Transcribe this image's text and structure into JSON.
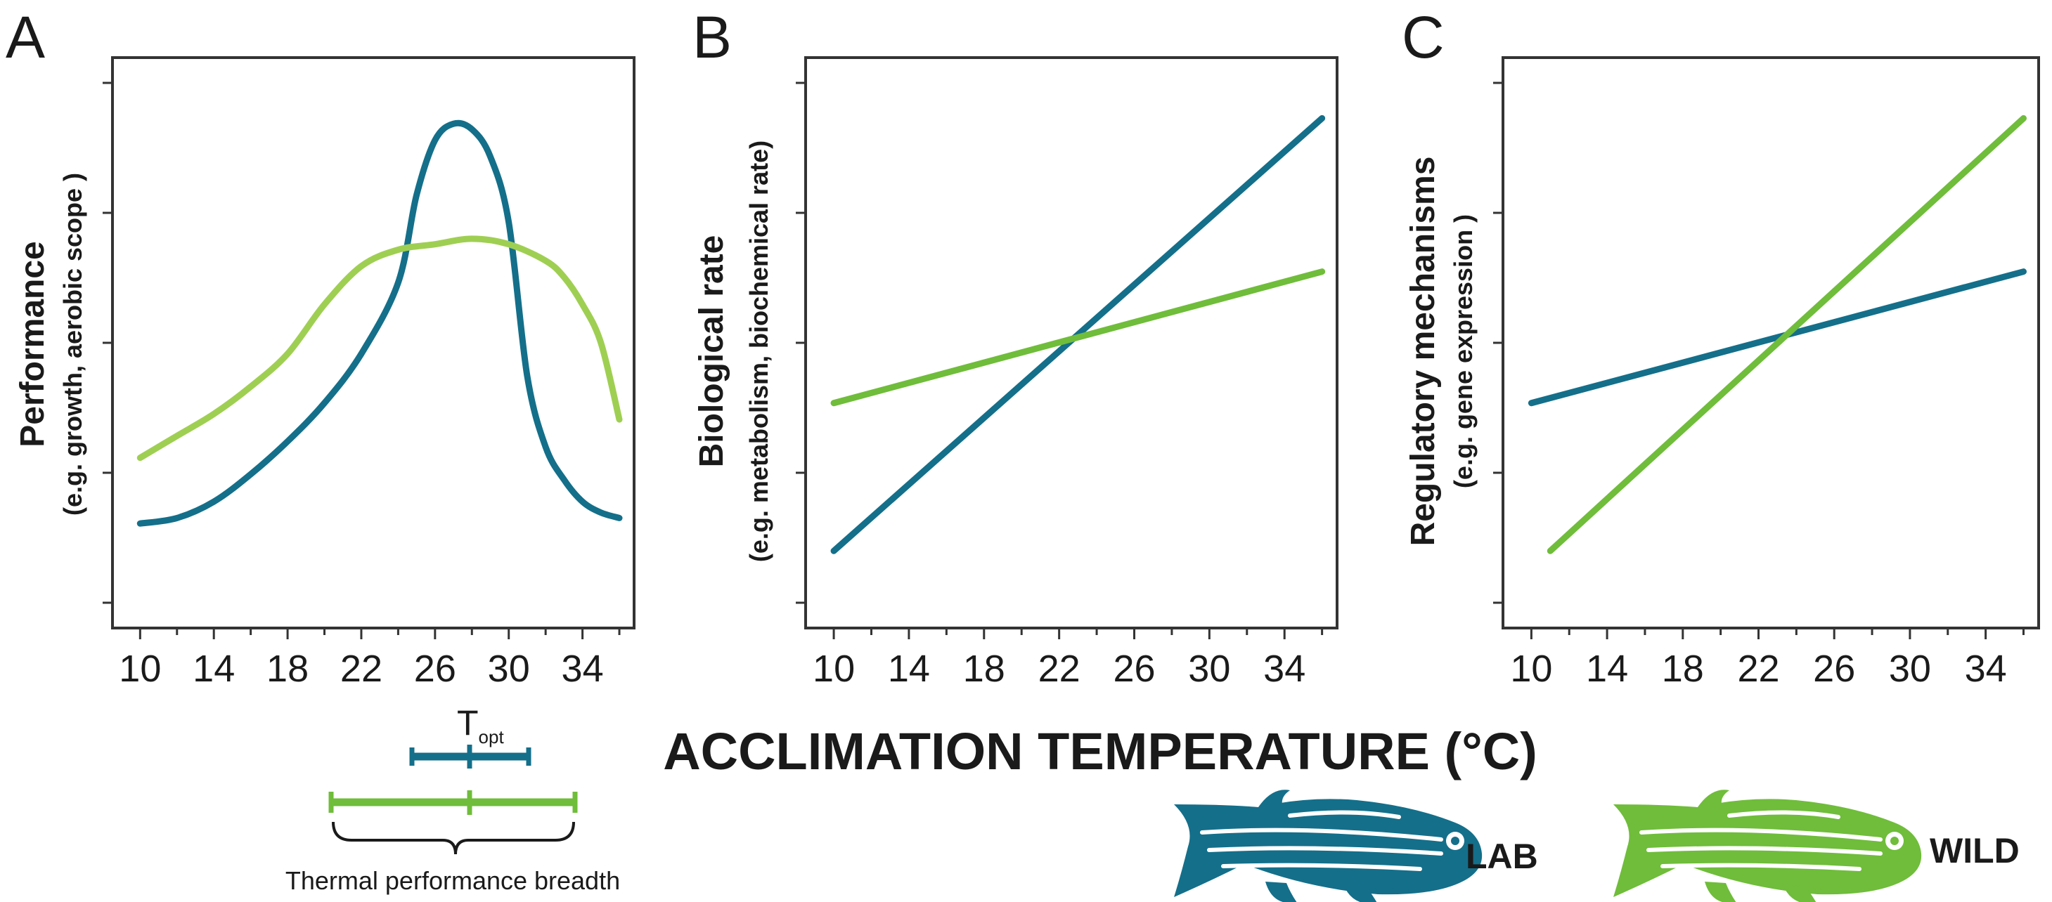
{
  "colors": {
    "lab": "#146f8a",
    "wild": "#6fbd3a",
    "wild_light": "#9fcf52"
  },
  "x_axis_title": "ACCLIMATION TEMPERATURE (°C)",
  "legend": [
    {
      "label": "LAB",
      "icon": "zebrafish-icon",
      "color": "#146f8a"
    },
    {
      "label": "WILD",
      "icon": "zebrafish-icon",
      "color": "#6fbd3a"
    }
  ],
  "annotation": {
    "topt_main": "T",
    "topt_sub": "opt",
    "breadth_label": "Thermal performance breadth"
  },
  "chart_data": [
    {
      "panel": "A",
      "type": "line",
      "ylabel": "Performance",
      "ylabel_sub": "(e.g. growth, aerobic scope )",
      "xlim": [
        8,
        37
      ],
      "xticks": [
        10,
        14,
        18,
        22,
        26,
        30,
        34
      ],
      "ylim": [
        0,
        1
      ],
      "ytick_count": 5,
      "series": [
        {
          "name": "LAB",
          "x": [
            10,
            12,
            14,
            16,
            18,
            20,
            22,
            24,
            25,
            26,
            27,
            28,
            29,
            30,
            31,
            32,
            33,
            34,
            35,
            36
          ],
          "y": [
            0.17,
            0.18,
            0.21,
            0.26,
            0.32,
            0.39,
            0.48,
            0.61,
            0.77,
            0.87,
            0.9,
            0.89,
            0.84,
            0.72,
            0.44,
            0.31,
            0.25,
            0.21,
            0.19,
            0.18
          ]
        },
        {
          "name": "WILD",
          "x": [
            10,
            12,
            14,
            16,
            18,
            20,
            22,
            24,
            26,
            28,
            30,
            32,
            33,
            34,
            35,
            36
          ],
          "y": [
            0.29,
            0.33,
            0.37,
            0.42,
            0.48,
            0.57,
            0.64,
            0.67,
            0.68,
            0.69,
            0.68,
            0.65,
            0.62,
            0.57,
            0.5,
            0.36
          ]
        }
      ]
    },
    {
      "panel": "B",
      "type": "line",
      "ylabel": "Biological rate",
      "ylabel_sub": "(e.g. metabolism, biochemical rate)",
      "xlim": [
        8,
        37
      ],
      "xticks": [
        10,
        14,
        18,
        22,
        26,
        30,
        34
      ],
      "ylim": [
        0,
        1
      ],
      "ytick_count": 5,
      "series": [
        {
          "name": "LAB",
          "x": [
            10,
            36
          ],
          "y": [
            0.12,
            0.91
          ]
        },
        {
          "name": "WILD",
          "x": [
            10,
            36
          ],
          "y": [
            0.39,
            0.63
          ]
        }
      ]
    },
    {
      "panel": "C",
      "type": "line",
      "ylabel": "Regulatory mechanisms",
      "ylabel_sub": "(e.g. gene expression )",
      "xlim": [
        8,
        37
      ],
      "xticks": [
        10,
        14,
        18,
        22,
        26,
        30,
        34
      ],
      "ylim": [
        0,
        1
      ],
      "ytick_count": 5,
      "series": [
        {
          "name": "LAB",
          "x": [
            10,
            36
          ],
          "y": [
            0.39,
            0.63
          ]
        },
        {
          "name": "WILD",
          "x": [
            11,
            36
          ],
          "y": [
            0.12,
            0.91
          ]
        }
      ]
    }
  ]
}
